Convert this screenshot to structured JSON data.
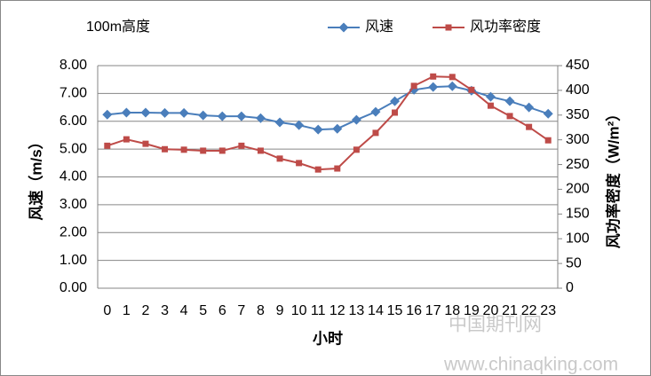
{
  "chart_data": {
    "type": "line",
    "title": "100m高度",
    "x_label": "小时",
    "y_label": "风速（m/s）",
    "y2_label": "风功率密度（W/m²）",
    "watermark": [
      "中国期刊网",
      "www.chinaqking.com"
    ],
    "categories": [
      "0",
      "1",
      "2",
      "3",
      "4",
      "5",
      "6",
      "7",
      "8",
      "9",
      "10",
      "11",
      "12",
      "13",
      "14",
      "15",
      "16",
      "17",
      "18",
      "19",
      "20",
      "21",
      "22",
      "23"
    ],
    "series": [
      {
        "name": "风速",
        "color": "#4a7ebb",
        "marker": "diamond",
        "values": [
          6.24,
          6.31,
          6.31,
          6.3,
          6.3,
          6.21,
          6.18,
          6.18,
          6.11,
          5.96,
          5.86,
          5.7,
          5.73,
          6.05,
          6.34,
          6.72,
          7.13,
          7.23,
          7.26,
          7.1,
          6.88,
          6.72,
          6.5,
          6.27
        ]
      },
      {
        "name": "风功率密度",
        "color": "#be4b48",
        "marker": "square",
        "axis": "y2",
        "values": [
          288,
          301,
          292,
          281,
          280,
          278,
          278,
          288,
          278,
          262,
          253,
          240,
          242,
          280,
          314,
          355,
          409,
          428,
          427,
          401,
          369,
          348,
          326,
          299
        ]
      }
    ],
    "ylim": [
      0,
      8
    ],
    "yticks": [
      {
        "value": 0,
        "label": "0.00"
      },
      {
        "value": 1,
        "label": "1.00"
      },
      {
        "value": 2,
        "label": "2.00"
      },
      {
        "value": 3,
        "label": "3.00"
      },
      {
        "value": 4,
        "label": "4.00"
      },
      {
        "value": 5,
        "label": "5.00"
      },
      {
        "value": 6,
        "label": "6.00"
      },
      {
        "value": 7,
        "label": "7.00"
      },
      {
        "value": 8,
        "label": "8.00"
      }
    ],
    "y2lim": [
      0,
      450
    ],
    "y2ticks": [
      0,
      50,
      100,
      150,
      200,
      250,
      300,
      350,
      400,
      450
    ],
    "grid": true
  }
}
